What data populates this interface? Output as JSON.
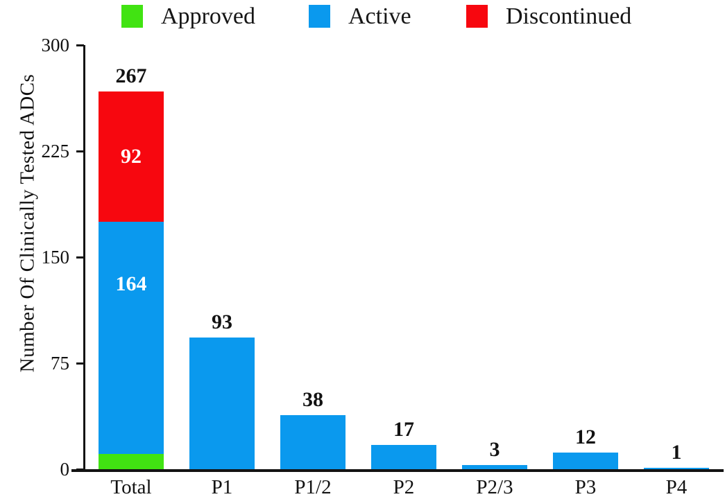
{
  "legend": [
    {
      "label": "Approved",
      "color": "#41E312"
    },
    {
      "label": "Active",
      "color": "#0A99EE"
    },
    {
      "label": "Discontinued",
      "color": "#F7070F"
    }
  ],
  "chart_data": {
    "type": "bar",
    "stacked": true,
    "title": "",
    "ylabel": "Number Of Clinically Tested ADCs",
    "xlabel": "",
    "ylim": [
      0,
      300
    ],
    "yticks": [
      "0",
      "75",
      "150",
      "225",
      "300"
    ],
    "grid": false,
    "legend_position": "top",
    "categories": [
      "Total",
      "P1",
      "P1/2",
      "P2",
      "P2/3",
      "P3",
      "P4"
    ],
    "series": [
      {
        "name": "Approved",
        "color": "#41E312",
        "values": [
          11,
          0,
          0,
          0,
          0,
          0,
          0
        ],
        "segment_label_color": "#35DD0C",
        "segment_label_anchor": "above"
      },
      {
        "name": "Active",
        "color": "#0A99EE",
        "values": [
          164,
          93,
          38,
          17,
          3,
          12,
          1
        ],
        "segment_label_color": "#FFFFFF",
        "segment_label_anchor": 0.27
      },
      {
        "name": "Discontinued",
        "color": "#F7070F",
        "values": [
          92,
          0,
          0,
          0,
          0,
          0,
          0
        ],
        "segment_label_color": "#FFFFFF",
        "segment_label_anchor": 0.5
      }
    ],
    "bar_totals": [
      "267",
      "93",
      "38",
      "17",
      "3",
      "12",
      "1"
    ],
    "segment_labels_category": "Total"
  }
}
